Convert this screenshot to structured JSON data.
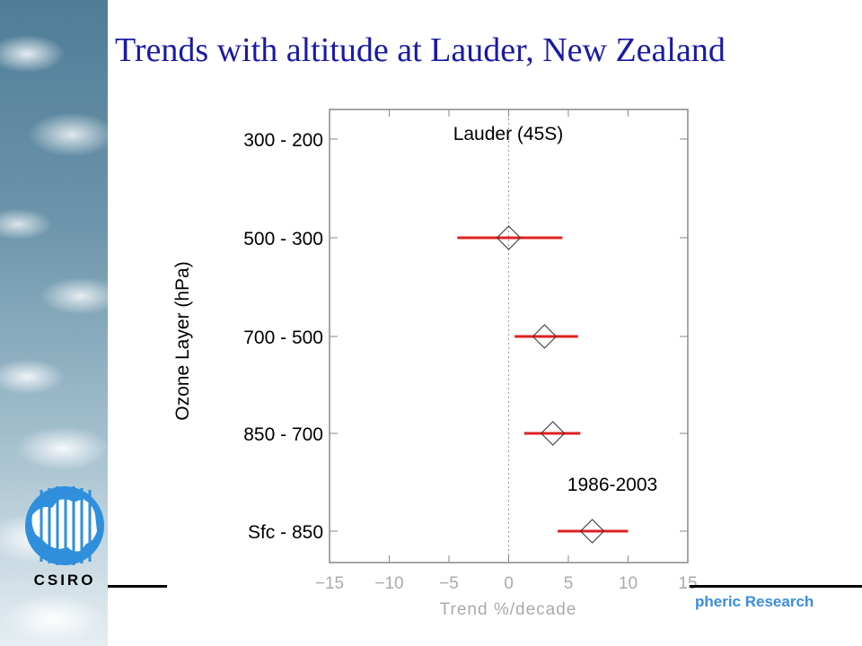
{
  "slide": {
    "title": "Trends with altitude at Lauder, New Zealand",
    "footer_text": "pheric Research",
    "logo_text": "CSIRO"
  },
  "colors": {
    "title": "#1a1aa6",
    "error_bar": "#e02020",
    "marker": "#333333",
    "footer_text": "#3b8ce0",
    "logo_blue": "#2f8fdc"
  },
  "chart_data": {
    "type": "scatter",
    "title": "Lauder (45S)",
    "annotation": "1986-2003",
    "xlabel": "Trend %/decade",
    "ylabel": "Ozone Layer (hPa)",
    "xlim": [
      -15,
      15
    ],
    "xticks": [
      "−15",
      "−10",
      "−5",
      "0",
      "5",
      "10",
      "15"
    ],
    "xtick_values": [
      -15,
      -10,
      -5,
      0,
      5,
      10,
      15
    ],
    "categories": [
      "300 - 200",
      "500 - 300",
      "700 - 500",
      "850 - 700",
      "Sfc  - 850"
    ],
    "points": [
      {
        "category": "500 - 300",
        "trend": 0.0,
        "low": -4.3,
        "high": 4.5
      },
      {
        "category": "700 - 500",
        "trend": 3.0,
        "low": 0.5,
        "high": 5.8
      },
      {
        "category": "850 - 700",
        "trend": 3.7,
        "low": 1.3,
        "high": 6.0
      },
      {
        "category": "Sfc  - 850",
        "trend": 7.0,
        "low": 4.1,
        "high": 10.0
      }
    ],
    "zero_line": "dotted",
    "grid": false
  }
}
